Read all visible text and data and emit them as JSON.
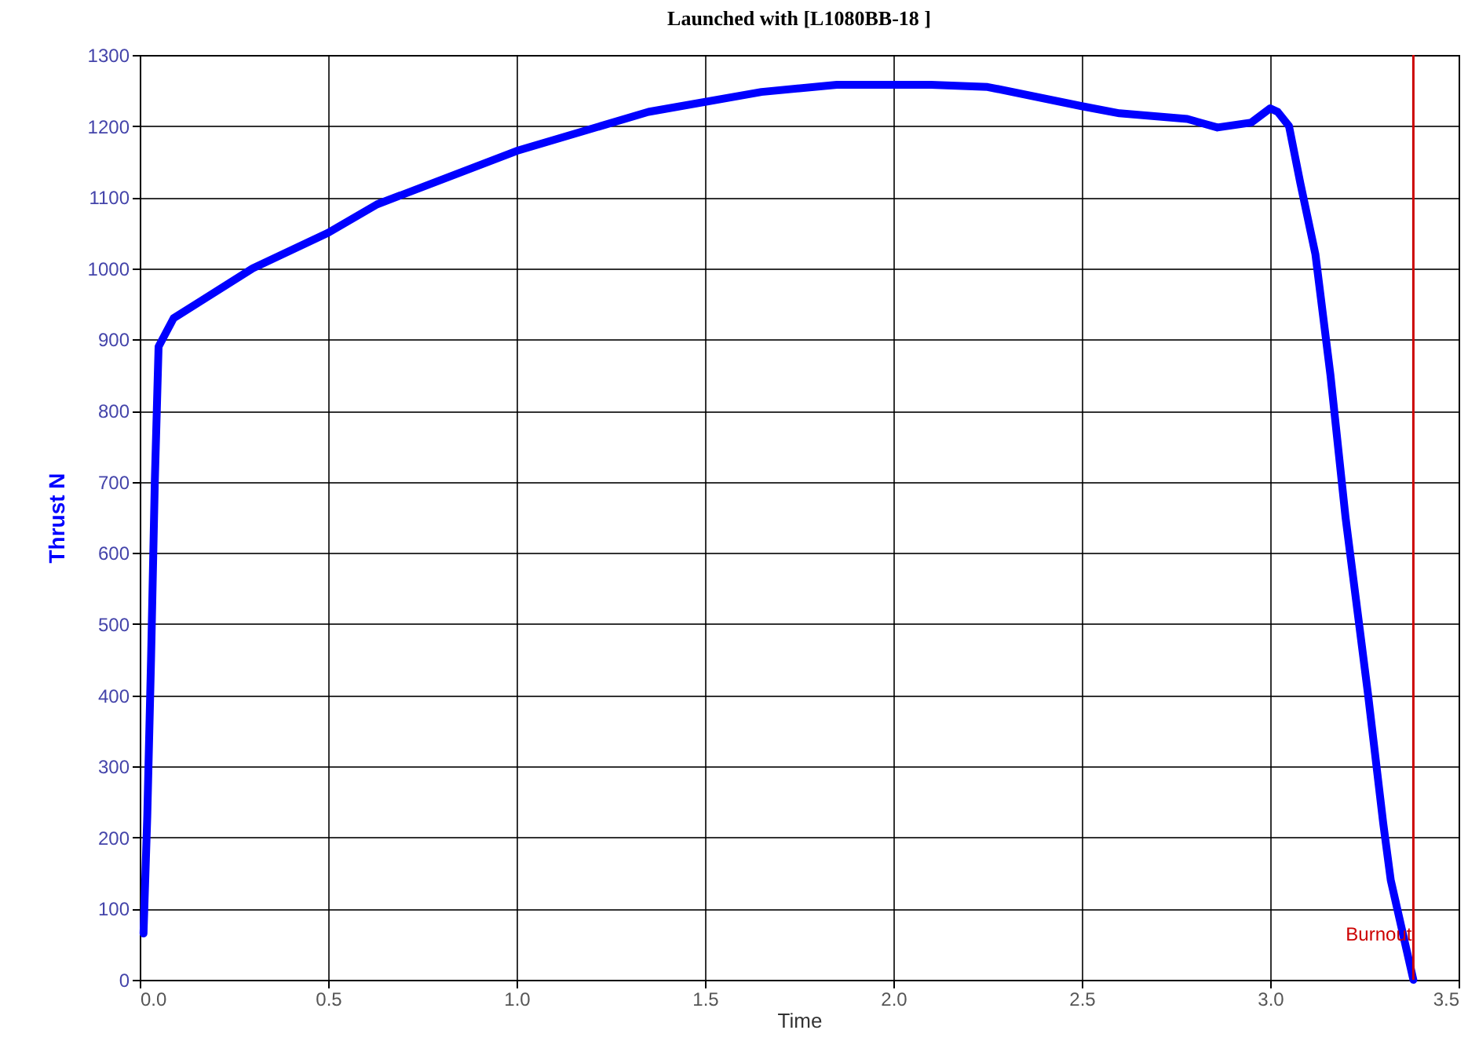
{
  "chart_data": {
    "type": "line",
    "title": "Launched with [L1080BB-18  ]",
    "xlabel": "Time",
    "ylabel": "Thrust N",
    "xlim": [
      0,
      3.5
    ],
    "ylim": [
      0,
      1300
    ],
    "xticks": [
      {
        "value": 0,
        "label": "0.0"
      },
      0.5,
      {
        "value": 1,
        "label": "1.0"
      },
      1.5,
      {
        "value": 2,
        "label": "2.0"
      },
      2.5,
      {
        "value": 3,
        "label": "3.0"
      },
      3.5
    ],
    "yticks": [
      0,
      100,
      200,
      300,
      400,
      500,
      600,
      700,
      800,
      900,
      1000,
      1100,
      1200,
      1300
    ],
    "grid": true,
    "x": [
      0.01,
      0.02,
      0.03,
      0.04,
      0.05,
      0.09,
      0.3,
      0.5,
      0.63,
      1.0,
      1.35,
      1.65,
      1.85,
      2.1,
      2.25,
      2.5,
      2.6,
      2.78,
      2.86,
      2.95,
      3.0,
      3.02,
      3.05,
      3.08,
      3.12,
      3.16,
      3.2,
      3.26,
      3.3,
      3.32,
      3.35,
      3.38
    ],
    "series": [
      {
        "color": "#0000ff",
        "values": [
          65,
          230,
          450,
          700,
          890,
          930,
          1000,
          1050,
          1090,
          1165,
          1220,
          1248,
          1258,
          1258,
          1255,
          1228,
          1218,
          1210,
          1198,
          1205,
          1225,
          1220,
          1200,
          1120,
          1020,
          850,
          650,
          400,
          220,
          140,
          70,
          0
        ]
      }
    ],
    "ref_lines": [
      {
        "axis": "x",
        "value": 3.38,
        "label": "Burnout",
        "color": "#cc0000"
      }
    ]
  }
}
